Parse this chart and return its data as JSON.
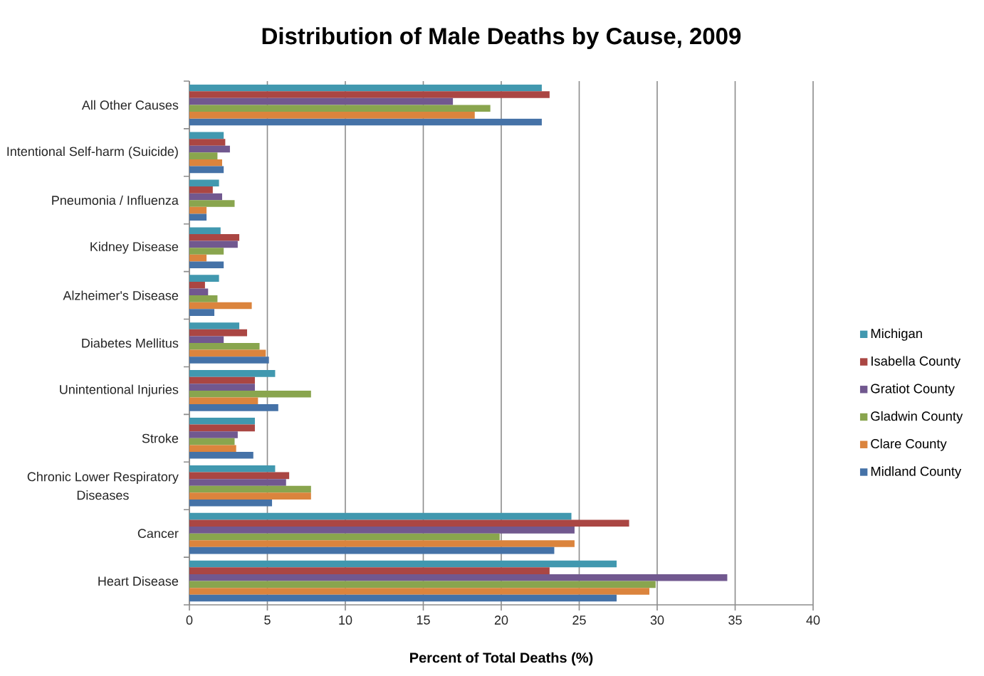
{
  "chart_data": {
    "type": "bar",
    "orientation": "horizontal",
    "title": "Distribution of Male Deaths by Cause, 2009",
    "xlabel": "Percent of Total Deaths (%)",
    "categories": [
      "All Other Causes",
      "Intentional Self-harm (Suicide)",
      "Pneumonia / Influenza",
      "Kidney Disease",
      "Alzheimer's Disease",
      "Diabetes Mellitus",
      "Unintentional Injuries",
      "Stroke",
      "Chronic Lower Respiratory Diseases",
      "Cancer",
      "Heart Disease"
    ],
    "series": [
      {
        "name": "Michigan",
        "color": "#4198af",
        "values": [
          22.6,
          2.2,
          1.9,
          2.0,
          1.9,
          3.2,
          5.5,
          4.2,
          5.5,
          24.5,
          27.4
        ]
      },
      {
        "name": "Isabella County",
        "color": "#aa4643",
        "values": [
          23.1,
          2.3,
          1.5,
          3.2,
          1.0,
          3.7,
          4.2,
          4.2,
          6.4,
          28.2,
          23.1
        ]
      },
      {
        "name": "Gratiot County",
        "color": "#71588f",
        "values": [
          16.9,
          2.6,
          2.1,
          3.1,
          1.2,
          2.2,
          4.2,
          3.1,
          6.2,
          24.7,
          34.5
        ]
      },
      {
        "name": "Gladwin County",
        "color": "#89a54e",
        "values": [
          19.3,
          1.8,
          2.9,
          2.2,
          1.8,
          4.5,
          7.8,
          2.9,
          7.8,
          19.9,
          29.9
        ]
      },
      {
        "name": "Clare County",
        "color": "#db843d",
        "values": [
          18.3,
          2.1,
          1.1,
          1.1,
          4.0,
          4.9,
          4.4,
          3.0,
          7.8,
          24.7,
          29.5
        ]
      },
      {
        "name": "Midland County",
        "color": "#4572a7",
        "values": [
          22.6,
          2.2,
          1.1,
          2.2,
          1.6,
          5.1,
          5.7,
          4.1,
          5.3,
          23.4,
          27.4
        ]
      }
    ],
    "xlim": [
      0,
      40
    ],
    "xticks": [
      0,
      5,
      10,
      15,
      20,
      25,
      30,
      35,
      40
    ],
    "grid": "x",
    "legend": "right"
  }
}
